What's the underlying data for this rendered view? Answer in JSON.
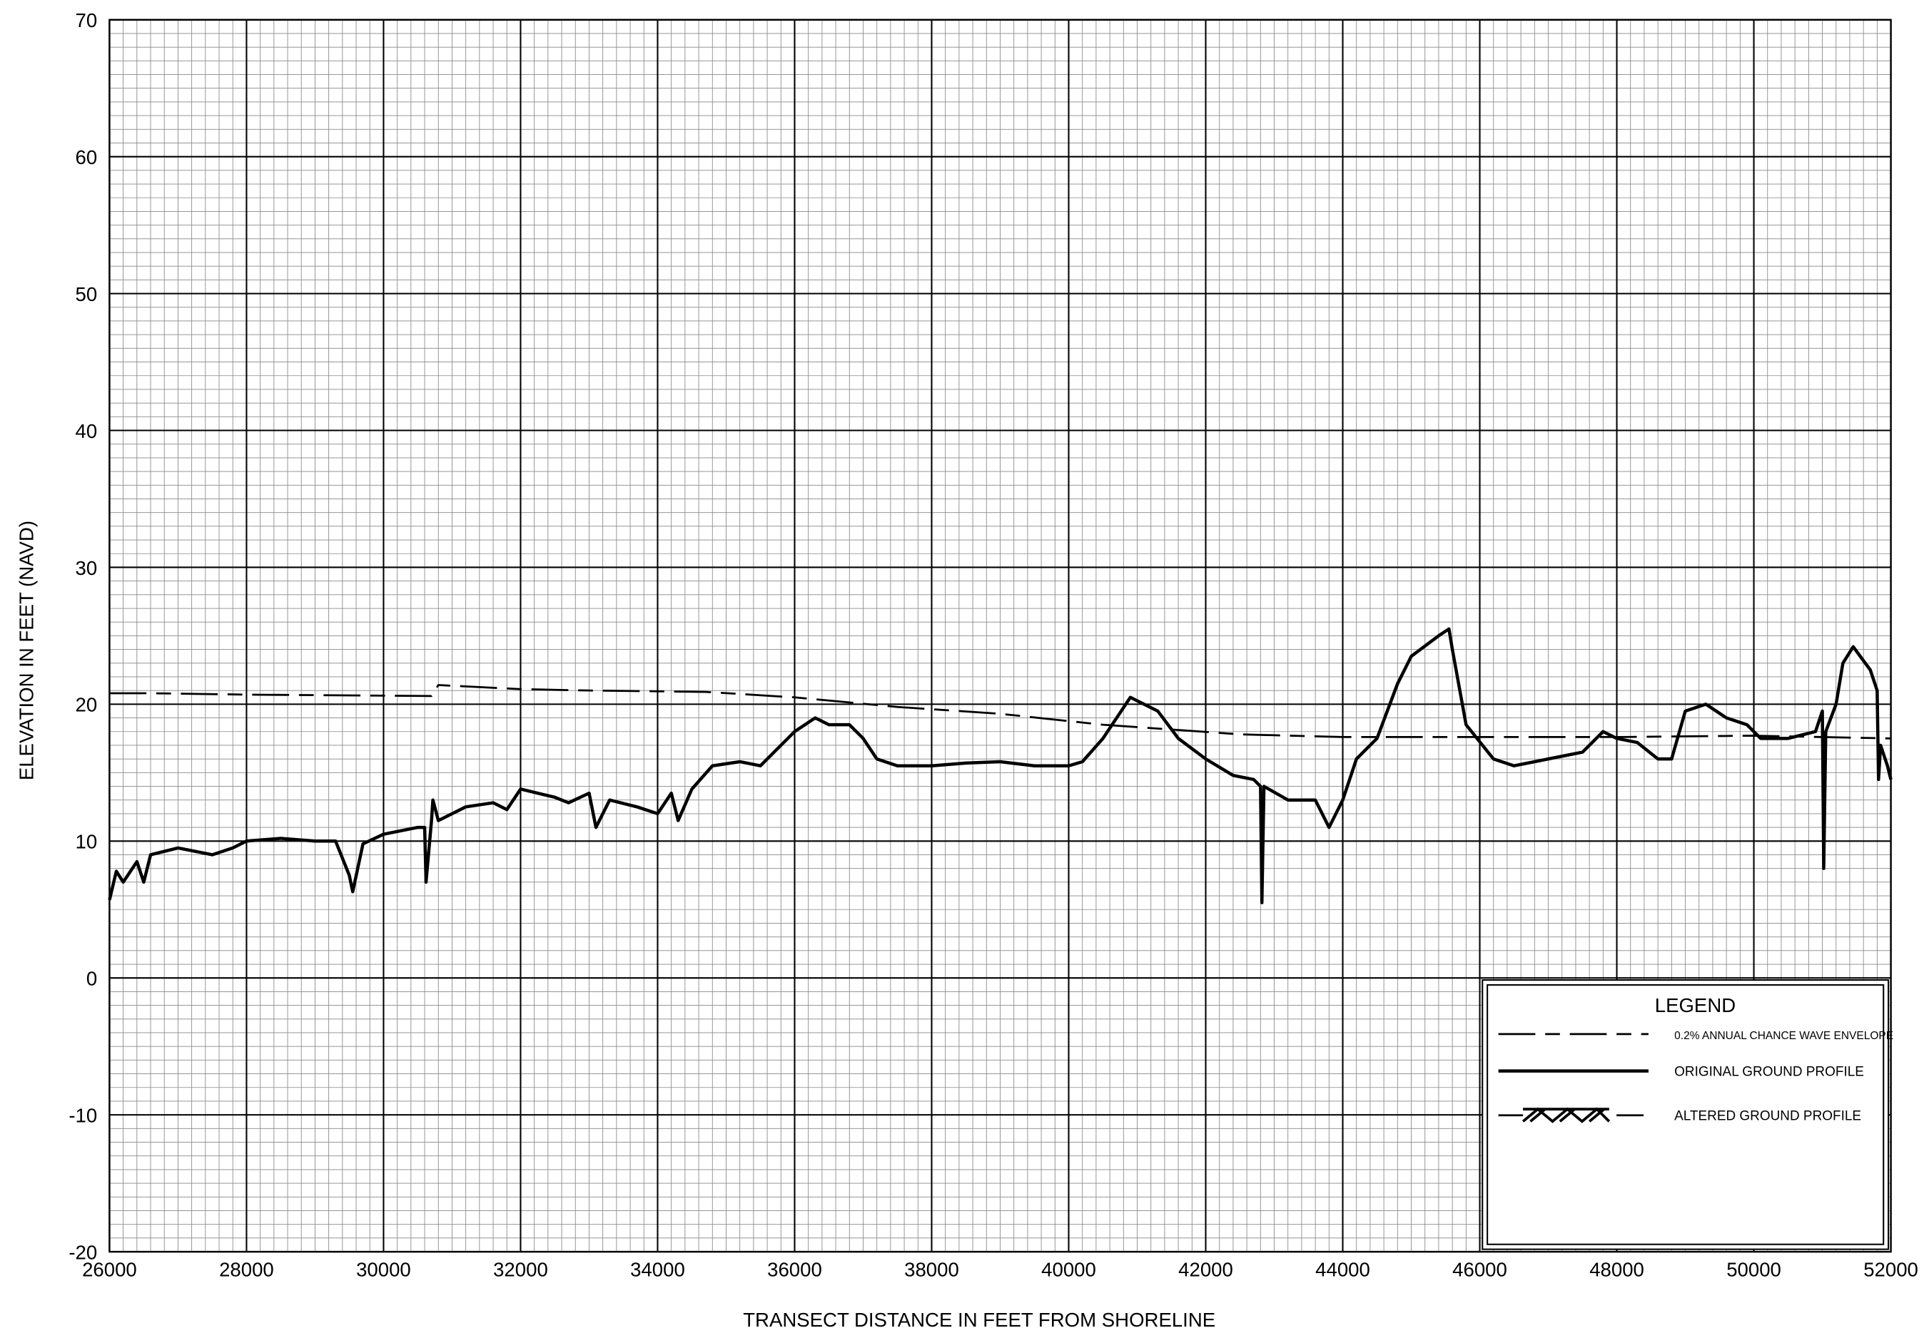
{
  "chart_data": {
    "type": "line",
    "xlabel": "TRANSECT DISTANCE IN FEET FROM SHORELINE",
    "ylabel": "ELEVATION IN FEET (NAVD)",
    "xlim": [
      26000,
      52000
    ],
    "xticks": [
      26000,
      28000,
      30000,
      32000,
      34000,
      36000,
      38000,
      40000,
      42000,
      44000,
      46000,
      48000,
      50000,
      52000
    ],
    "ylim": [
      -20,
      70
    ],
    "yticks": [
      -20,
      -10,
      0,
      10,
      20,
      30,
      40,
      50,
      60,
      70
    ],
    "grid": true,
    "legend": {
      "title": "LEGEND",
      "position": "lower right"
    },
    "series": [
      {
        "name": "0.2% ANNUAL CHANCE WAVE ENVELOPE",
        "color": "#000000",
        "linestyle": "dashed",
        "x": [
          26000,
          26600,
          28000,
          30700,
          30800,
          32000,
          33000,
          34700,
          36000,
          37500,
          39000,
          40500,
          42500,
          44000,
          48000,
          50000,
          52000
        ],
        "values": [
          20.8,
          20.8,
          20.7,
          20.6,
          21.4,
          21.1,
          21.0,
          20.9,
          20.5,
          19.8,
          19.3,
          18.5,
          17.8,
          17.6,
          17.6,
          17.7,
          17.5
        ]
      },
      {
        "name": "ORIGINAL GROUND PROFILE",
        "color": "#000000",
        "linestyle": "solid",
        "x": [
          26000,
          26100,
          26200,
          26400,
          26500,
          26600,
          27000,
          27500,
          27800,
          28000,
          28500,
          29000,
          29300,
          29500,
          29550,
          29700,
          30000,
          30500,
          30600,
          30620,
          30700,
          30720,
          30800,
          31200,
          31600,
          31800,
          32000,
          32500,
          32700,
          33000,
          33100,
          33300,
          33700,
          34000,
          34200,
          34300,
          34500,
          34800,
          35200,
          35500,
          35800,
          36000,
          36300,
          36500,
          36800,
          37000,
          37200,
          37500,
          38000,
          38500,
          39000,
          39500,
          40000,
          40200,
          40500,
          40900,
          41300,
          41600,
          42000,
          42400,
          42700,
          42800,
          42820,
          42850,
          43200,
          43600,
          43800,
          44000,
          44200,
          44500,
          44800,
          45000,
          45400,
          45550,
          45600,
          45800,
          46200,
          46500,
          47000,
          47500,
          47800,
          48000,
          48300,
          48600,
          48800,
          49000,
          49300,
          49600,
          49900,
          50100,
          50500,
          50900,
          51000,
          51020,
          51050,
          51200,
          51300,
          51450,
          51700,
          51800,
          51820,
          51850,
          51950,
          52000
        ],
        "values": [
          5.7,
          7.8,
          7.0,
          8.5,
          7.0,
          9.0,
          9.5,
          9.0,
          9.5,
          10.0,
          10.2,
          10.0,
          10.0,
          7.5,
          6.3,
          9.8,
          10.5,
          11.0,
          11.0,
          7.0,
          11.5,
          13.0,
          11.5,
          12.5,
          12.8,
          12.3,
          13.8,
          13.2,
          12.8,
          13.5,
          11.0,
          13.0,
          12.5,
          12.0,
          13.5,
          11.5,
          13.8,
          15.5,
          15.8,
          15.5,
          17.0,
          18.0,
          19.0,
          18.5,
          18.5,
          17.5,
          16.0,
          15.5,
          15.5,
          15.7,
          15.8,
          15.5,
          15.5,
          15.8,
          17.5,
          20.5,
          19.5,
          17.5,
          16.0,
          14.8,
          14.5,
          14.0,
          5.5,
          14.0,
          13.0,
          13.0,
          11.0,
          13.0,
          16.0,
          17.5,
          21.5,
          23.5,
          25.0,
          25.5,
          24.0,
          18.5,
          16.0,
          15.5,
          16.0,
          16.5,
          18.0,
          17.5,
          17.2,
          16.0,
          16.0,
          19.5,
          20.0,
          19.0,
          18.5,
          17.5,
          17.5,
          18.0,
          19.5,
          8.0,
          18.0,
          20.0,
          23.0,
          24.2,
          22.5,
          21.0,
          14.5,
          17.0,
          15.5,
          14.5
        ]
      },
      {
        "name": "ALTERED GROUND PROFILE",
        "color": "#000000",
        "linestyle": "hatched",
        "x": [],
        "values": []
      }
    ]
  }
}
